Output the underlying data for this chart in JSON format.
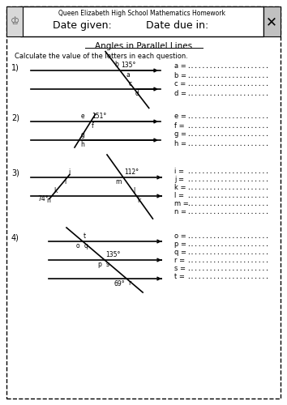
{
  "title": "Angles in Parallel Lines",
  "school_line1": "Queen Elizabeth High School Mathematics Homework",
  "school_line2_left": "Date given:",
  "school_line2_right": "Date due in:",
  "instruction": "Calculate the value of the letters in each question.",
  "bg_color": "#ffffff",
  "q1_num": "1)",
  "q1_angle": "135°",
  "q1_labels": [
    "a",
    "b",
    "c",
    "d"
  ],
  "q2_num": "2)",
  "q2_angle": "151°",
  "q2_labels": [
    "e",
    "f",
    "g",
    "h"
  ],
  "q3_num": "3)",
  "q3_angle1": "112°",
  "q3_angle2": "74°",
  "q3_labels": [
    "i",
    "j",
    "k",
    "l",
    "m",
    "n"
  ],
  "q4_num": "4)",
  "q4_angle1": "135°",
  "q4_angle2": "69°",
  "q4_labels": [
    "o",
    "p",
    "q",
    "r",
    "s",
    "t"
  ]
}
